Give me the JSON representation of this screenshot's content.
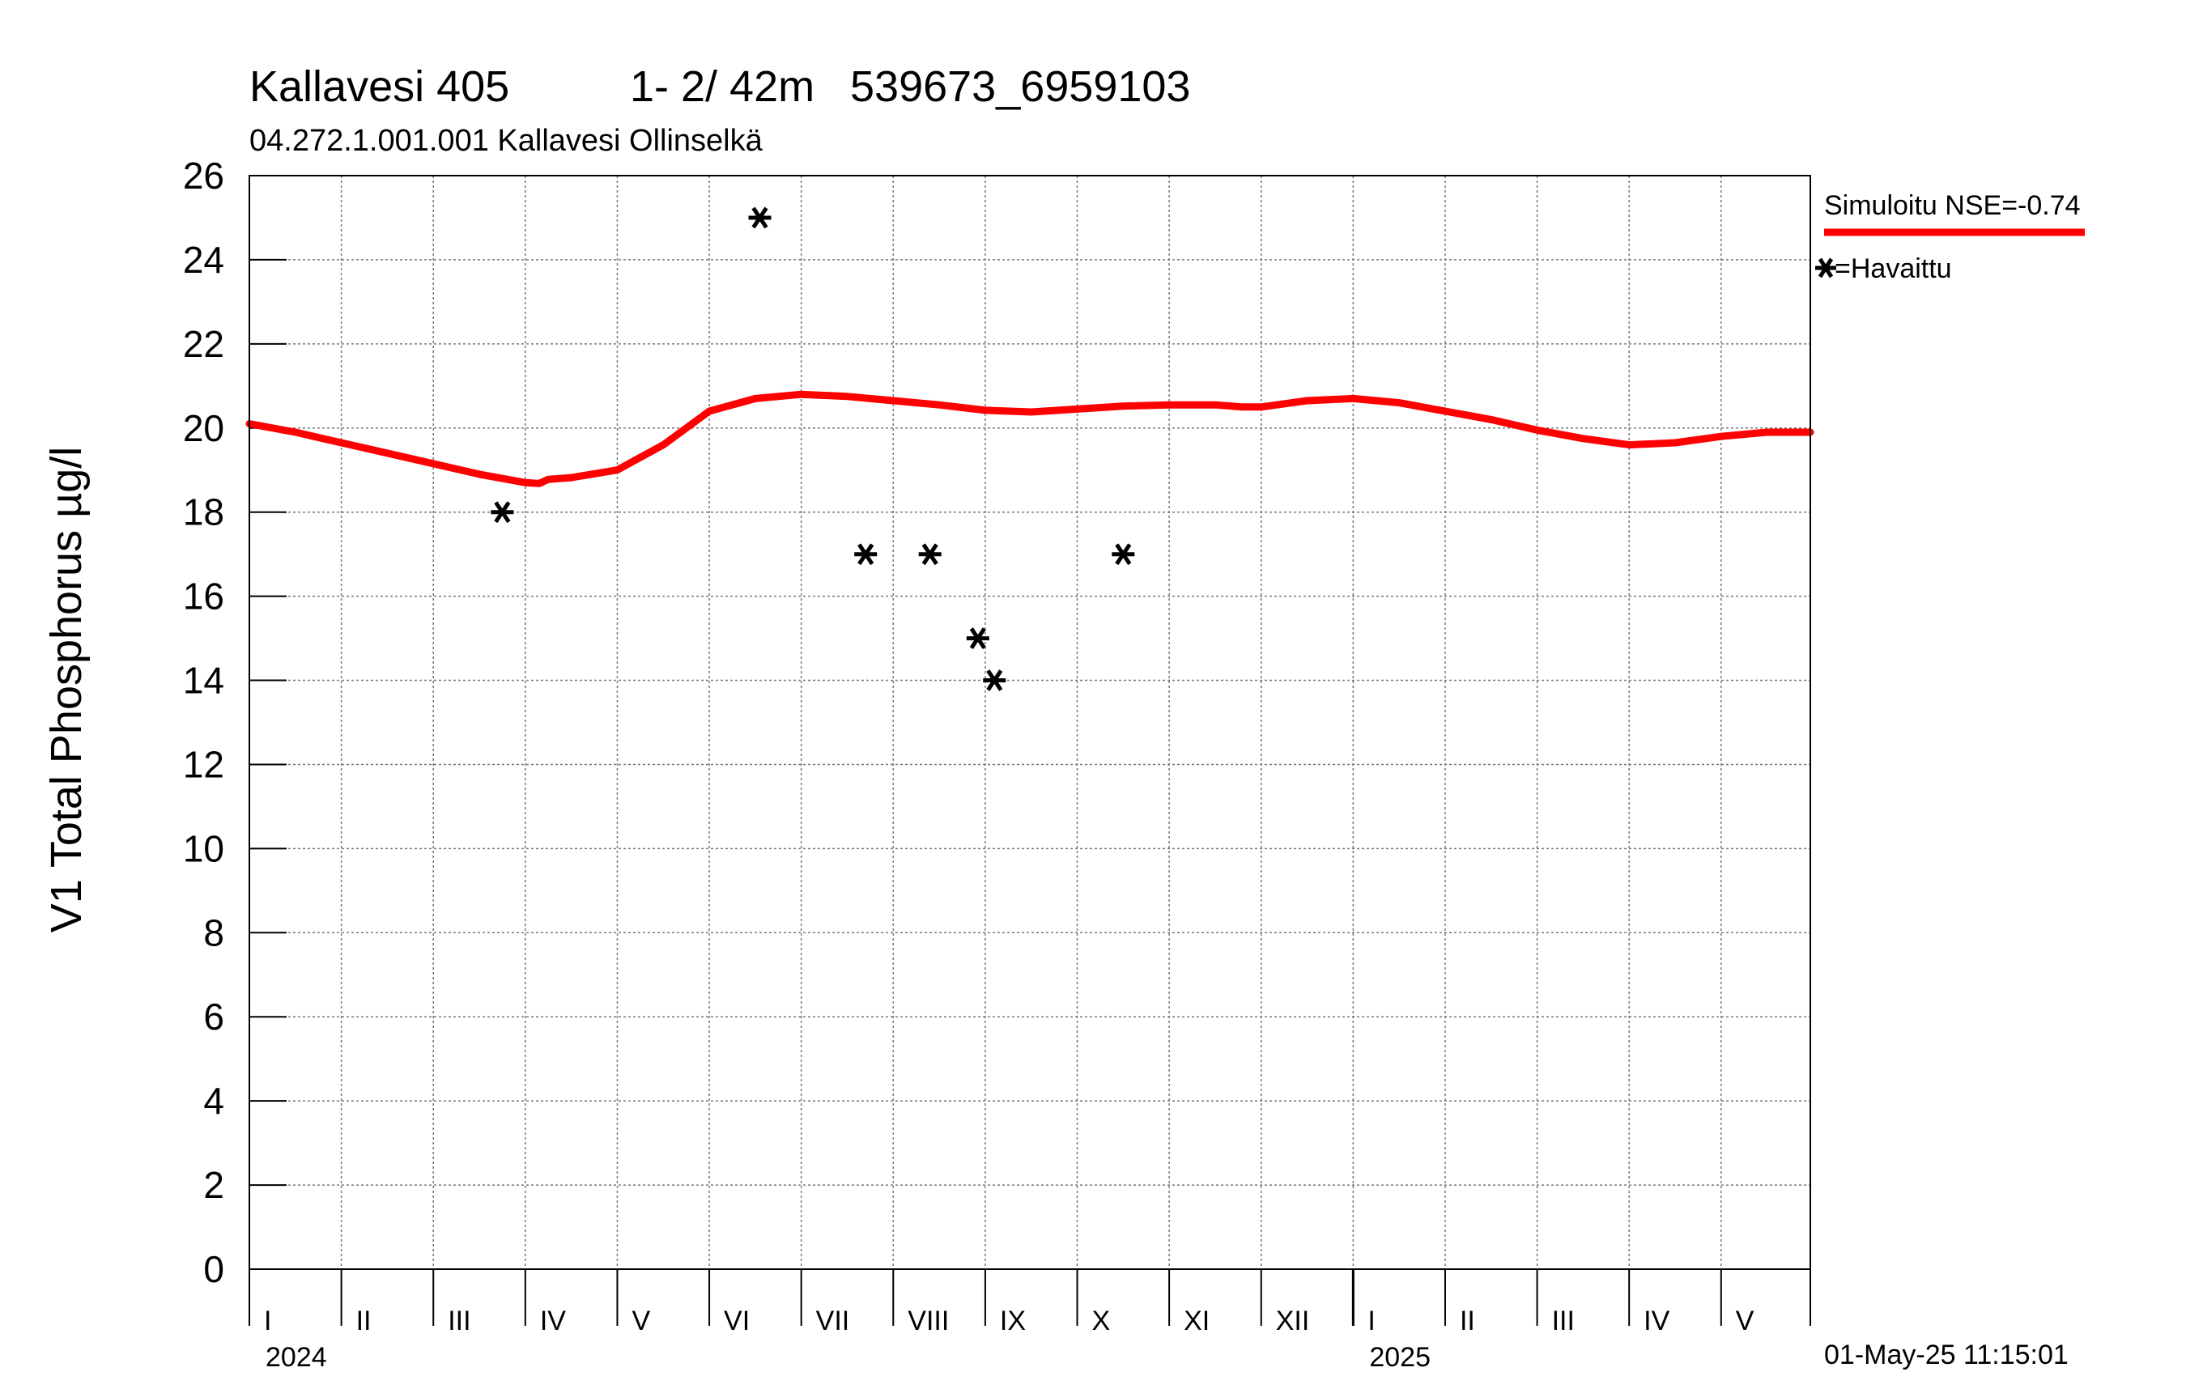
{
  "header": {
    "title_station": "Kallavesi 405",
    "title_depth": "1- 2/ 42m",
    "title_coords": "539673_6959103",
    "subtitle": "04.272.1.001.001 Kallavesi Ollinselkä"
  },
  "footer": {
    "timestamp": "01-May-25 11:15:01"
  },
  "chart_data": {
    "type": "line",
    "title": "Kallavesi 405 1- 2/ 42m 539673_6959103",
    "subtitle": "04.272.1.001.001 Kallavesi Ollinselkä",
    "ylabel": "V1 Total Phosphorus µg/l",
    "xlabel": "",
    "ylim": [
      0,
      26
    ],
    "yticks": [
      0,
      2,
      4,
      6,
      8,
      10,
      12,
      14,
      16,
      18,
      20,
      22,
      24,
      26
    ],
    "x_unit": "months since 2024-01-01",
    "xlim": [
      0,
      16.97
    ],
    "grid": true,
    "months": [
      {
        "label": "I",
        "start": 0
      },
      {
        "label": "II",
        "start": 1
      },
      {
        "label": "III",
        "start": 2
      },
      {
        "label": "IV",
        "start": 3
      },
      {
        "label": "V",
        "start": 4
      },
      {
        "label": "VI",
        "start": 5
      },
      {
        "label": "VII",
        "start": 6
      },
      {
        "label": "VIII",
        "start": 7
      },
      {
        "label": "IX",
        "start": 8
      },
      {
        "label": "X",
        "start": 9
      },
      {
        "label": "XI",
        "start": 10
      },
      {
        "label": "XII",
        "start": 11
      },
      {
        "label": "I",
        "start": 12
      },
      {
        "label": "II",
        "start": 13
      },
      {
        "label": "III",
        "start": 14
      },
      {
        "label": "IV",
        "start": 15
      },
      {
        "label": "V",
        "start": 16
      }
    ],
    "years": [
      {
        "label": "2024",
        "start": 0
      },
      {
        "label": "2025",
        "start": 12
      }
    ],
    "legend": {
      "position": "right",
      "simulated_label": "Simuloitu NSE=-0.74",
      "observed_label": "=Havaittu"
    },
    "series": [
      {
        "name": "Simuloitu NSE=-0.74",
        "kind": "line",
        "color": "#ff0000",
        "x": [
          0,
          0.5,
          1,
          1.5,
          2,
          2.5,
          3,
          3.15,
          3.25,
          3.5,
          4,
          4.5,
          5,
          5.5,
          6,
          6.5,
          7,
          7.5,
          8,
          8.5,
          9,
          9.5,
          10,
          10.5,
          10.8,
          11,
          11.5,
          12,
          12.5,
          13,
          13.5,
          14,
          14.5,
          15,
          15.5,
          16,
          16.5,
          16.97
        ],
        "values": [
          20.1,
          19.9,
          19.65,
          19.4,
          19.15,
          18.9,
          18.7,
          18.68,
          18.78,
          18.82,
          19.0,
          19.6,
          20.4,
          20.7,
          20.8,
          20.75,
          20.65,
          20.55,
          20.42,
          20.38,
          20.45,
          20.52,
          20.55,
          20.55,
          20.5,
          20.5,
          20.65,
          20.7,
          20.6,
          20.4,
          20.2,
          19.95,
          19.75,
          19.6,
          19.65,
          19.8,
          19.9,
          19.9
        ]
      },
      {
        "name": "Havaittu",
        "kind": "scatter",
        "marker": "asterisk",
        "color": "#000000",
        "x": [
          2.75,
          5.55,
          6.7,
          7.4,
          7.92,
          8.1,
          9.5
        ],
        "values": [
          18,
          25,
          17,
          17,
          15,
          14,
          17
        ]
      }
    ]
  }
}
